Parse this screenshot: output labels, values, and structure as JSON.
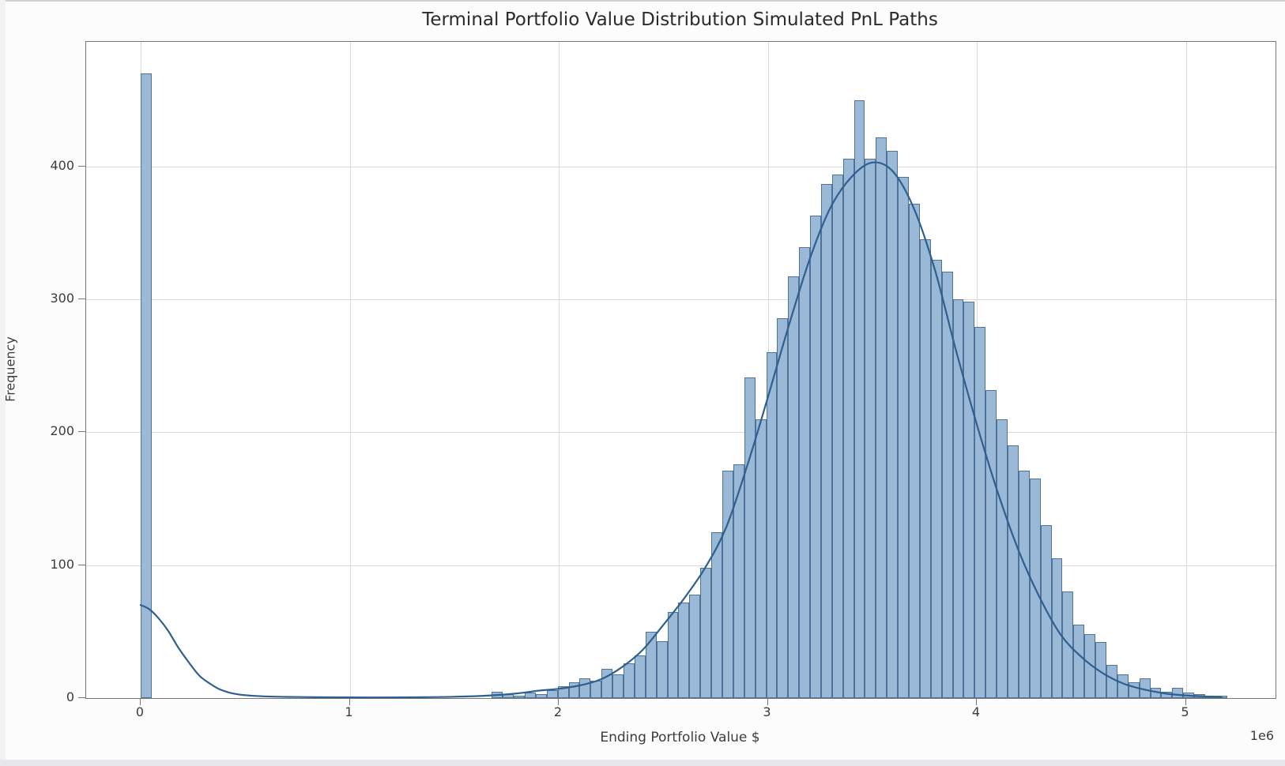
{
  "title": "Terminal Portfolio Value Distribution Simulated PnL Paths",
  "chart_data": {
    "type": "bar",
    "subtype": "histogram_with_kde",
    "title": "Terminal Portfolio Value Distribution Simulated PnL Paths",
    "xlabel": "Ending Portfolio Value $",
    "ylabel": "Frequency",
    "x_offset_label": "1e6",
    "x_units": "dollars_1e6",
    "x_ticks": [
      0,
      1,
      2,
      3,
      4,
      5
    ],
    "y_ticks": [
      0,
      100,
      200,
      300,
      400
    ],
    "xlim": [
      -0.26,
      5.43
    ],
    "ylim": [
      0,
      494
    ],
    "grid": true,
    "legend": false,
    "bin_start": 0,
    "bin_width": 0.0525,
    "bin_counts": [
      470,
      0,
      0,
      0,
      0,
      0,
      0,
      0,
      0,
      0,
      0,
      0,
      0,
      0,
      0,
      0,
      0,
      0,
      0,
      0,
      0,
      0,
      0,
      0,
      0,
      0,
      0,
      0,
      0,
      0,
      0,
      0,
      5,
      3,
      2,
      4,
      3,
      6,
      9,
      12,
      15,
      13,
      22,
      18,
      26,
      32,
      50,
      43,
      65,
      72,
      78,
      98,
      125,
      171,
      176,
      241,
      210,
      260,
      286,
      317,
      339,
      363,
      387,
      394,
      406,
      450,
      406,
      422,
      412,
      392,
      372,
      345,
      330,
      321,
      300,
      298,
      279,
      232,
      210,
      190,
      171,
      165,
      130,
      105,
      80,
      55,
      48,
      42,
      25,
      18,
      12,
      15,
      8,
      5,
      8,
      4,
      3,
      2,
      2,
      0
    ],
    "kde_points": [
      [
        0,
        70
      ],
      [
        0.04,
        67
      ],
      [
        0.08,
        61
      ],
      [
        0.13,
        51
      ],
      [
        0.18,
        38
      ],
      [
        0.23,
        27
      ],
      [
        0.28,
        17
      ],
      [
        0.33,
        11
      ],
      [
        0.38,
        6.5
      ],
      [
        0.45,
        3.2
      ],
      [
        0.55,
        1.6
      ],
      [
        0.7,
        0.9
      ],
      [
        0.9,
        0.6
      ],
      [
        1.1,
        0.5
      ],
      [
        1.3,
        0.6
      ],
      [
        1.5,
        1
      ],
      [
        1.65,
        1.8
      ],
      [
        1.8,
        3.5
      ],
      [
        1.9,
        5.5
      ],
      [
        2.0,
        7
      ],
      [
        2.1,
        9.5
      ],
      [
        2.2,
        14
      ],
      [
        2.3,
        23
      ],
      [
        2.4,
        36
      ],
      [
        2.5,
        55
      ],
      [
        2.6,
        75
      ],
      [
        2.7,
        98
      ],
      [
        2.8,
        128
      ],
      [
        2.9,
        174
      ],
      [
        3.0,
        226
      ],
      [
        3.1,
        280
      ],
      [
        3.2,
        330
      ],
      [
        3.3,
        369
      ],
      [
        3.4,
        392
      ],
      [
        3.5,
        403
      ],
      [
        3.6,
        396
      ],
      [
        3.7,
        368
      ],
      [
        3.8,
        322
      ],
      [
        3.9,
        262
      ],
      [
        4.0,
        206
      ],
      [
        4.1,
        155
      ],
      [
        4.2,
        111
      ],
      [
        4.3,
        76
      ],
      [
        4.4,
        48
      ],
      [
        4.5,
        31
      ],
      [
        4.6,
        19
      ],
      [
        4.7,
        11
      ],
      [
        4.8,
        6.5
      ],
      [
        4.9,
        3.5
      ],
      [
        5.0,
        2
      ],
      [
        5.1,
        1.2
      ],
      [
        5.17,
        0.8
      ]
    ]
  },
  "colors": {
    "bar_fill": "#9ab9d6",
    "bar_edge": "#4f7398",
    "kde_line": "#2f5f8f",
    "gridline": "#d9d9d9",
    "spine": "#767676",
    "text": "#3c3c3c",
    "plot_background": "#ffffff",
    "page_background": "#fcfcfc"
  }
}
